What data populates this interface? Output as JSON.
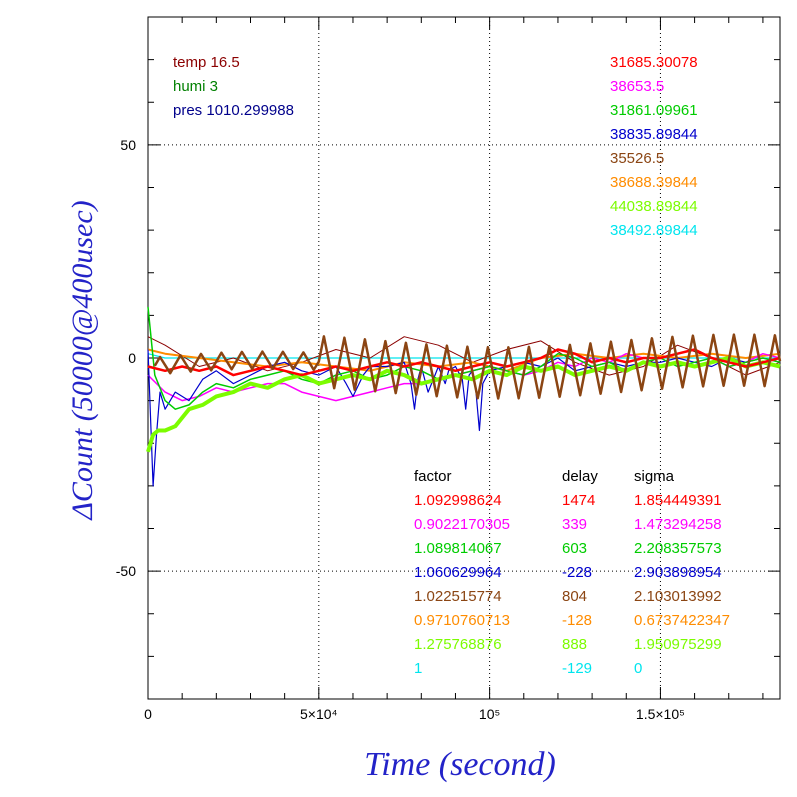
{
  "chart_data": {
    "type": "line",
    "title": "",
    "xlabel": "Time (second)",
    "ylabel": "ΔCount (50000@400usec)",
    "xlim": [
      0,
      185000
    ],
    "ylim": [
      -80,
      80
    ],
    "x_ticks": [
      {
        "value": 0,
        "label": "0"
      },
      {
        "value": 50000,
        "label": "5×10⁴"
      },
      {
        "value": 100000,
        "label": "10⁵"
      },
      {
        "value": 150000,
        "label": "1.5×10⁵"
      }
    ],
    "y_ticks": [
      {
        "value": 50,
        "label": "50"
      },
      {
        "value": 0,
        "label": "0"
      },
      {
        "value": -50,
        "label": "-50"
      }
    ],
    "grid": true,
    "env": [
      {
        "text": "temp 16.5",
        "color": "#8b0000"
      },
      {
        "text": "humi 3",
        "color": "#008000"
      },
      {
        "text": "pres 1010.299988",
        "color": "#00008b"
      }
    ],
    "counts": [
      {
        "text": "31685.30078",
        "color": "#ff0000"
      },
      {
        "text": "38653.5",
        "color": "#ff00ff"
      },
      {
        "text": "31861.09961",
        "color": "#00cc00"
      },
      {
        "text": "38835.89844",
        "color": "#0000cd"
      },
      {
        "text": "35526.5",
        "color": "#8b4513"
      },
      {
        "text": "38688.39844",
        "color": "#ff8c00"
      },
      {
        "text": "44038.89844",
        "color": "#7cfc00"
      },
      {
        "text": "38492.89844",
        "color": "#00e5ee"
      }
    ],
    "table_headers": [
      "factor",
      "delay",
      "sigma"
    ],
    "table_rows": [
      {
        "factor": "1.092998624",
        "delay": "1474",
        "sigma": "1.854449391",
        "color": "#ff0000"
      },
      {
        "factor": "0.9022170305",
        "delay": "339",
        "sigma": "1.473294258",
        "color": "#ff00ff"
      },
      {
        "factor": "1.089814067",
        "delay": "603",
        "sigma": "2.208357573",
        "color": "#00cc00"
      },
      {
        "factor": "1.060629964",
        "delay": "-228",
        "sigma": "2.903898954",
        "color": "#0000cd"
      },
      {
        "factor": "1.022515774",
        "delay": "804",
        "sigma": "2.103013992",
        "color": "#8b4513"
      },
      {
        "factor": "0.9710760713",
        "delay": "-128",
        "sigma": "0.6737422347",
        "color": "#ff8c00"
      },
      {
        "factor": "1.275768876",
        "delay": "888",
        "sigma": "1.950975299",
        "color": "#7cfc00"
      },
      {
        "factor": "1",
        "delay": "-129",
        "sigma": "0",
        "color": "#00e5ee"
      }
    ],
    "series": [
      {
        "color": "#00e5ee",
        "width": 1.2,
        "x": [
          0,
          5000,
          15000,
          30000,
          45000,
          60000,
          75000,
          90000,
          105000,
          120000,
          135000,
          150000,
          165000,
          185000
        ],
        "y": [
          1,
          0,
          0,
          0,
          0,
          0,
          0,
          0,
          0,
          0,
          0,
          0,
          0,
          0
        ]
      },
      {
        "color": "#8b0000",
        "width": 1,
        "x": [
          0,
          5000,
          15000,
          25000,
          35000,
          45000,
          55000,
          65000,
          75000,
          85000,
          95000,
          105000,
          115000,
          125000,
          135000,
          145000,
          155000,
          165000,
          175000,
          185000
        ],
        "y": [
          5,
          3,
          -2,
          0,
          -3,
          -1,
          2,
          0,
          5,
          3,
          -1,
          2,
          4,
          -1,
          -4,
          -2,
          3,
          0,
          -4,
          -1
        ]
      },
      {
        "color": "#ff8c00",
        "width": 2,
        "x": [
          0,
          5000,
          15000,
          25000,
          35000,
          45000,
          55000,
          65000,
          75000,
          85000,
          95000,
          105000,
          115000,
          125000,
          135000,
          145000,
          155000,
          165000,
          175000,
          185000
        ],
        "y": [
          2,
          1,
          0,
          -1,
          -2,
          -1,
          -2,
          -3,
          -1,
          -2,
          -1,
          -3,
          0,
          1,
          0,
          1,
          0,
          1,
          0,
          1
        ]
      },
      {
        "color": "#ff00ff",
        "width": 1.5,
        "x": [
          0,
          5000,
          10000,
          15000,
          20000,
          25000,
          30000,
          35000,
          40000,
          45000,
          50000,
          55000,
          60000,
          65000,
          70000,
          75000,
          80000,
          85000,
          90000,
          95000,
          100000,
          105000,
          110000,
          115000,
          120000,
          125000,
          130000,
          135000,
          140000,
          145000,
          150000,
          155000,
          160000,
          165000,
          170000,
          175000,
          180000,
          185000
        ],
        "y": [
          -4,
          -8,
          -10,
          -9,
          -7,
          -8,
          -7,
          -6,
          -6,
          -8,
          -9,
          -10,
          -9,
          -8,
          -7,
          -6,
          -6,
          -5,
          -4,
          -3,
          -2,
          -3,
          -4,
          -3,
          -1,
          -2,
          0,
          -1,
          1,
          0,
          0,
          1,
          2,
          0,
          -2,
          -1,
          1,
          0
        ]
      },
      {
        "color": "#0000cd",
        "width": 1.2,
        "x": [
          0,
          1500,
          2500,
          3500,
          5000,
          8000,
          12000,
          16000,
          20000,
          25000,
          30000,
          35000,
          40000,
          45000,
          50000,
          55000,
          58000,
          60000,
          63000,
          65000,
          70000,
          75000,
          77000,
          78000,
          79000,
          80000,
          82000,
          84000,
          85000,
          87000,
          88000,
          90000,
          92000,
          93000,
          94000,
          95000,
          96000,
          97000,
          98000,
          100000,
          105000,
          110000,
          115000,
          120000,
          125000,
          130000,
          135000,
          140000,
          145000,
          150000,
          155000,
          160000,
          165000,
          170000,
          175000,
          180000,
          185000
        ],
        "y": [
          2,
          -30,
          -18,
          -8,
          -12,
          -8,
          -10,
          -5,
          -3,
          -6,
          -4,
          -2,
          -1,
          -3,
          -4,
          -2,
          -6,
          -9,
          -4,
          -2,
          -2,
          -1,
          -6,
          -12,
          -5,
          -2,
          -8,
          -4,
          -2,
          -6,
          -3,
          -2,
          -5,
          -12,
          -4,
          -3,
          -8,
          -17,
          -6,
          -3,
          -2,
          -1,
          -2,
          0,
          -3,
          -2,
          -1,
          -2,
          -1,
          -1,
          0,
          -1,
          -2,
          0,
          -1,
          0,
          -1
        ]
      },
      {
        "color": "#00cc00",
        "width": 1.5,
        "x": [
          0,
          2000,
          5000,
          8000,
          12000,
          16000,
          20000,
          25000,
          30000,
          35000,
          40000,
          45000,
          50000,
          55000,
          60000,
          65000,
          70000,
          75000,
          80000,
          85000,
          90000,
          95000,
          100000,
          105000,
          110000,
          115000,
          120000,
          125000,
          130000,
          135000,
          140000,
          145000,
          150000,
          155000,
          160000,
          165000,
          170000,
          175000,
          180000,
          185000
        ],
        "y": [
          12,
          -4,
          -10,
          -12,
          -11,
          -8,
          -6,
          -7,
          -5,
          -4,
          -3,
          -5,
          -6,
          -4,
          -3,
          -5,
          -4,
          -2,
          -3,
          -5,
          -4,
          -3,
          -2,
          -3,
          -4,
          -2,
          1,
          0,
          -2,
          -1,
          -3,
          -1,
          0,
          -2,
          -1,
          0,
          -2,
          -1,
          0,
          -1
        ]
      },
      {
        "color": "#7cfc00",
        "width": 4,
        "x": [
          0,
          1500,
          3000,
          5000,
          8000,
          12000,
          16000,
          20000,
          25000,
          30000,
          35000,
          40000,
          45000,
          50000,
          55000,
          60000,
          65000,
          70000,
          75000,
          80000,
          85000,
          90000,
          95000,
          100000,
          105000,
          110000,
          115000,
          120000,
          125000,
          130000,
          135000,
          140000,
          145000,
          150000,
          155000,
          160000,
          165000,
          170000,
          175000,
          180000,
          185000
        ],
        "y": [
          -22,
          -18,
          -17,
          -17,
          -16,
          -12,
          -11,
          -9,
          -8,
          -6,
          -7,
          -5,
          -4,
          -6,
          -5,
          -4,
          -5,
          -3,
          -4,
          -6,
          -5,
          -4,
          -5,
          -3,
          -4,
          -2,
          -3,
          -2,
          -4,
          -3,
          -2,
          -3,
          -1,
          -2,
          -1,
          -2,
          -1,
          0,
          -2,
          -1,
          -2
        ]
      },
      {
        "color": "#ff0000",
        "width": 2.5,
        "x": [
          0,
          5000,
          10000,
          15000,
          20000,
          25000,
          30000,
          35000,
          40000,
          45000,
          50000,
          55000,
          60000,
          65000,
          70000,
          75000,
          80000,
          85000,
          90000,
          95000,
          100000,
          105000,
          110000,
          115000,
          120000,
          125000,
          130000,
          135000,
          140000,
          145000,
          150000,
          155000,
          160000,
          165000,
          170000,
          175000,
          180000,
          185000
        ],
        "y": [
          -2,
          -3,
          -2,
          -3,
          -2,
          -4,
          -3,
          -2,
          -3,
          -4,
          -3,
          -2,
          -3,
          -2,
          -1,
          -2,
          -1,
          -2,
          -3,
          -2,
          -1,
          -2,
          -1,
          0,
          2,
          1,
          -1,
          0,
          -1,
          0,
          0,
          1,
          2,
          0,
          -1,
          -2,
          -1,
          0
        ]
      }
    ],
    "brown_osc": {
      "color": "#8b4513",
      "start": 2000,
      "end": 185000,
      "period": 6000,
      "base": -2,
      "amp_early": 2,
      "amp_late": 6,
      "ramp_at": 50000
    }
  }
}
